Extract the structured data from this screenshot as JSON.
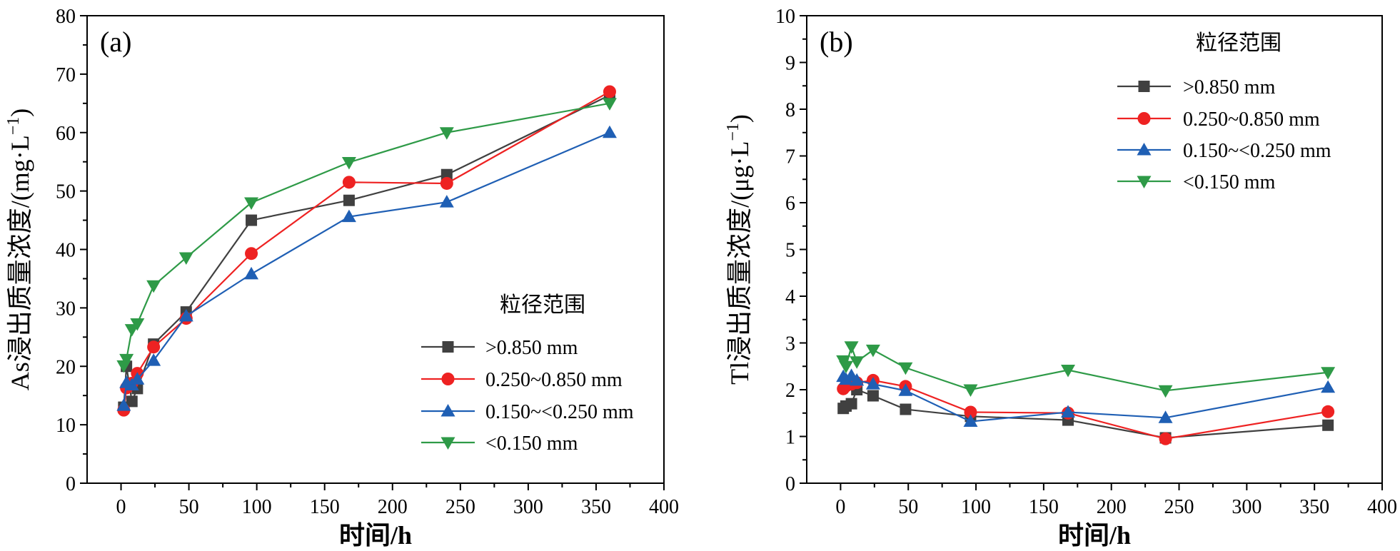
{
  "chart_data": [
    {
      "type": "line",
      "panel_label": "(a)",
      "xlabel": "时间/h",
      "ylabel": "As浸出质量浓度/(mg·L",
      "ylabel_superscript": "−1",
      "ylabel_suffix": ")",
      "xlim": [
        -25,
        400
      ],
      "ylim": [
        0,
        80
      ],
      "xticks": [
        0,
        50,
        100,
        150,
        200,
        250,
        300,
        350,
        400
      ],
      "yticks": [
        0,
        10,
        20,
        30,
        40,
        50,
        60,
        70,
        80
      ],
      "x": [
        2,
        4,
        8,
        12,
        24,
        48,
        96,
        168,
        240,
        360
      ],
      "legend": {
        "title": "粒径范围",
        "position": "lower-right"
      },
      "series": [
        {
          "name": ">0.850 mm",
          "color": "#404040",
          "marker": "square",
          "values": [
            13,
            20,
            14,
            16.2,
            23.8,
            29.3,
            45,
            48.4,
            52.8,
            66.4
          ]
        },
        {
          "name": "0.250~0.850 mm",
          "color": "#ee2222",
          "marker": "circle",
          "values": [
            12.5,
            16.3,
            17.1,
            18.8,
            23.3,
            28.2,
            39.3,
            51.5,
            51.3,
            67
          ]
        },
        {
          "name": "0.150~<0.250 mm",
          "color": "#1f5fb4",
          "marker": "triangle-up",
          "values": [
            13.3,
            17.2,
            16.8,
            17.8,
            21,
            28.6,
            35.8,
            45.6,
            48.1,
            60
          ]
        },
        {
          "name": "<0.150 mm",
          "color": "#2e9a47",
          "marker": "triangle-down",
          "values": [
            20.1,
            21.2,
            26.3,
            27.3,
            33.8,
            38.6,
            48,
            54.9,
            60,
            65
          ]
        }
      ]
    },
    {
      "type": "line",
      "panel_label": "(b)",
      "xlabel": "时间/h",
      "ylabel": "Tl浸出质量浓度/(μg·L",
      "ylabel_superscript": "−1",
      "ylabel_suffix": ")",
      "xlim": [
        -25,
        400
      ],
      "ylim": [
        0,
        10
      ],
      "xticks": [
        0,
        50,
        100,
        150,
        200,
        250,
        300,
        350,
        400
      ],
      "yticks": [
        0,
        1,
        2,
        3,
        4,
        5,
        6,
        7,
        8,
        9,
        10
      ],
      "x": [
        2,
        4,
        8,
        12,
        24,
        48,
        96,
        168,
        240,
        360
      ],
      "legend": {
        "title": "粒径范围",
        "position": "top-right"
      },
      "series": [
        {
          "name": ">0.850 mm",
          "color": "#404040",
          "marker": "square",
          "values": [
            1.6,
            1.65,
            1.7,
            2.0,
            1.87,
            1.58,
            1.43,
            1.35,
            0.97,
            1.24
          ]
        },
        {
          "name": "0.250~0.850 mm",
          "color": "#ee2222",
          "marker": "circle",
          "values": [
            2.02,
            2.08,
            2.12,
            2.15,
            2.2,
            2.07,
            1.52,
            1.5,
            0.95,
            1.53
          ]
        },
        {
          "name": "0.150~<0.250 mm",
          "color": "#1f5fb4",
          "marker": "triangle-up",
          "values": [
            2.28,
            2.22,
            2.3,
            2.2,
            2.12,
            1.98,
            1.32,
            1.52,
            1.4,
            2.05
          ]
        },
        {
          "name": "<0.150 mm",
          "color": "#2e9a47",
          "marker": "triangle-down",
          "values": [
            2.62,
            2.5,
            2.92,
            2.6,
            2.85,
            2.47,
            2.0,
            2.42,
            1.98,
            2.37
          ]
        }
      ]
    }
  ]
}
